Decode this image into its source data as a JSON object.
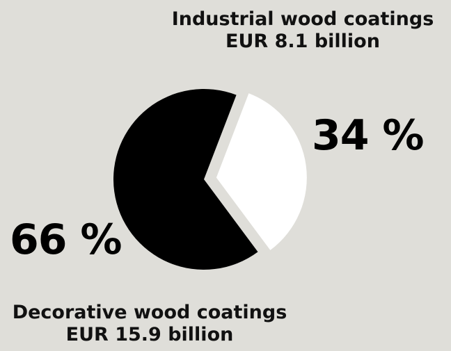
{
  "chart_data": {
    "type": "pie",
    "series": [
      {
        "values": [
          34,
          66
        ]
      }
    ],
    "categories": [
      "Industrial wood coatings",
      "Decorative wood coatings"
    ],
    "slices": [
      {
        "label": "Industrial wood coatings",
        "amount": "EUR 8.1 billion",
        "percent_label": "34 %",
        "value": 34,
        "color": "#ffffff"
      },
      {
        "label": "Decorative wood coatings",
        "amount": "EUR 15.9 billion",
        "percent_label": "66 %",
        "value": 66,
        "color": "#000000"
      }
    ]
  },
  "colors": {
    "background": "#dfded9",
    "industrial": "#ffffff",
    "decorative": "#000000"
  }
}
